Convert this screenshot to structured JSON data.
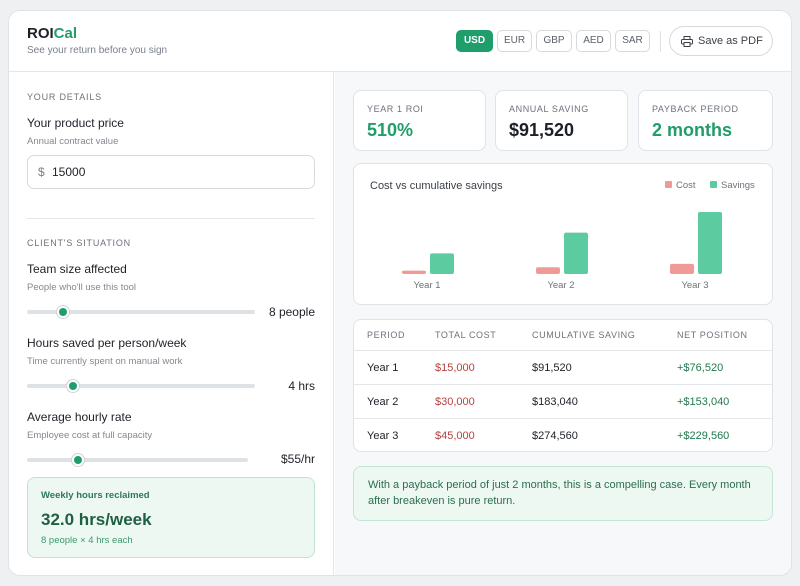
{
  "header": {
    "logo_main": "ROI",
    "logo_accent": "Cal",
    "tagline": "See your return before you sign",
    "currencies": [
      "USD",
      "EUR",
      "GBP",
      "AED",
      "SAR"
    ],
    "active_currency": "USD",
    "pdf_label": "Save as PDF"
  },
  "details": {
    "section_title": "YOUR DETAILS",
    "price_label": "Your product price",
    "price_sub": "Annual contract value",
    "price_symbol": "$",
    "price_value": "15000"
  },
  "situation": {
    "section_title": "CLIENT'S SITUATION",
    "team": {
      "label": "Team size affected",
      "sub": "People who'll use this tool",
      "value": "8 people",
      "level": 0.16
    },
    "hours": {
      "label": "Hours saved per person/week",
      "sub": "Time currently spent on manual work",
      "value": "4 hrs",
      "level": 0.2
    },
    "rate": {
      "label": "Average hourly rate",
      "sub": "Employee cost at full capacity",
      "value": "$55/hr",
      "level": 0.23
    }
  },
  "reclaimed": {
    "title": "Weekly hours reclaimed",
    "value": "32.0 hrs/week",
    "sub": "8 people × 4 hrs each"
  },
  "stats": [
    {
      "label": "YEAR 1 ROI",
      "value": "510%",
      "color": "#1f9d6b"
    },
    {
      "label": "ANNUAL SAVING",
      "value": "$91,520",
      "color": "#1d2127"
    },
    {
      "label": "PAYBACK PERIOD",
      "value": "2 months",
      "color": "#1f9d6b"
    }
  ],
  "chart_data": {
    "type": "bar",
    "title": "Cost vs cumulative savings",
    "categories": [
      "Year 1",
      "Year 2",
      "Year 3"
    ],
    "series": [
      {
        "name": "Cost",
        "values": [
          15000,
          30000,
          45000
        ],
        "color": "#f09a97"
      },
      {
        "name": "Savings",
        "values": [
          91520,
          183040,
          274560
        ],
        "color": "#5ccca0"
      }
    ],
    "legend": "top-right",
    "grid": false
  },
  "table": {
    "headers": [
      "PERIOD",
      "TOTAL COST",
      "CUMULATIVE SAVING",
      "NET POSITION"
    ],
    "rows": [
      [
        "Year 1",
        "$15,000",
        "$91,520",
        "+$76,520"
      ],
      [
        "Year 2",
        "$30,000",
        "$183,040",
        "+$153,040"
      ],
      [
        "Year 3",
        "$45,000",
        "$274,560",
        "+$229,560"
      ]
    ]
  },
  "note": "With a payback period of just 2 months, this is a compelling case. Every month after breakeven is pure return."
}
